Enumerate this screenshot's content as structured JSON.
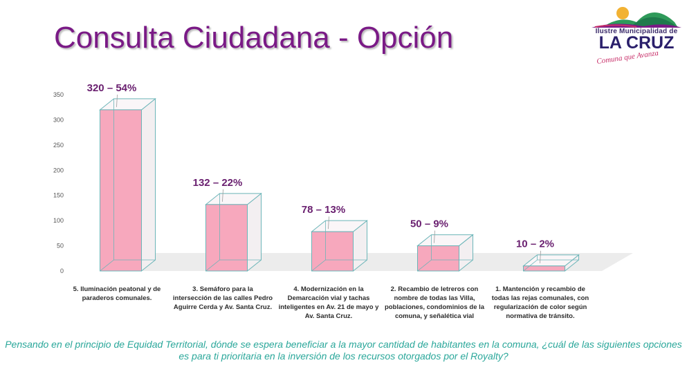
{
  "title": "Consulta Ciudadana - Opción",
  "logo": {
    "line1": "Ilustre Municipalidad de",
    "line2": "LA CRUZ",
    "line3": "Comuna que Avanza"
  },
  "footer": "Pensando en el principio de Equidad Territorial, dónde se espera beneficiar a la mayor cantidad de habitantes en la comuna, ¿cuál de las siguientes opciones es para ti prioritaria en la inversión de los recursos otorgados por el Royalty?",
  "chart_data": {
    "type": "bar",
    "title": "Consulta Ciudadana - Opción",
    "categories": [
      "5. Iluminación peatonal y de paraderos comunales.",
      "3. Semáforo para la intersección de las calles Pedro Aguirre Cerda y Av. Santa Cruz.",
      "4. Modernización en la Demarcación vial y tachas inteligentes en Av. 21 de mayo y Av. Santa Cruz.",
      "2. Recambio de letreros con nombre de todas las Villa, poblaciones, condominios de la comuna, y señalética vial",
      "1. Mantención y recambio de todas las rejas comunales, con regularización de color según normativa de tránsito."
    ],
    "values": [
      320,
      132,
      78,
      50,
      10
    ],
    "data_labels": [
      "320 – 54%",
      "132 – 22%",
      "78 – 13%",
      "50 – 9%",
      "10 – 2%"
    ],
    "ylim": [
      0,
      350
    ],
    "yticks": [
      "0",
      "50",
      "100",
      "150",
      "200",
      "250",
      "300",
      "350"
    ],
    "xlabel": "",
    "ylabel": "",
    "bar_color": "#f7a8bd",
    "edge_color": "#6bb5b8",
    "label_color": "#6a2070"
  }
}
